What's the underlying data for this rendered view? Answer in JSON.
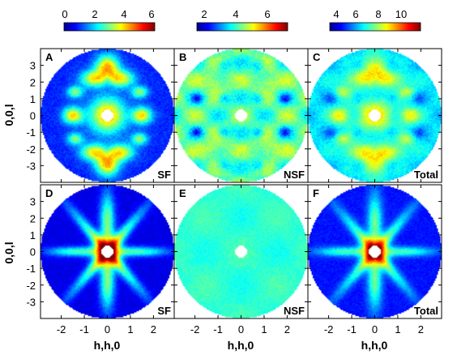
{
  "colorbars": [
    {
      "ticks": [
        "0",
        "2",
        "4",
        "6"
      ],
      "range": [
        0,
        6
      ]
    },
    {
      "ticks": [
        "2",
        "4",
        "6"
      ],
      "range": [
        1.5,
        7.5
      ]
    },
    {
      "ticks": [
        "4",
        "6",
        "8",
        "10"
      ],
      "range": [
        3,
        11
      ]
    }
  ],
  "chart_data": {
    "type": "heatmap",
    "xlabel": "h,h,0",
    "ylabel": "0,0,l",
    "x_ticks": [
      "-2",
      "-1",
      "0",
      "1",
      "2"
    ],
    "y_ticks": [
      "3",
      "2",
      "1",
      "0",
      "-1",
      "-2",
      "-3"
    ],
    "xlim": [
      -2.9,
      2.9
    ],
    "ylim": [
      -4,
      4
    ],
    "colormap": "jet",
    "panels": [
      {
        "letter": "A",
        "tag": "SF",
        "row": 0,
        "col": 0
      },
      {
        "letter": "B",
        "tag": "NSF",
        "row": 0,
        "col": 1
      },
      {
        "letter": "C",
        "tag": "Total",
        "row": 0,
        "col": 2
      },
      {
        "letter": "D",
        "tag": "SF",
        "row": 1,
        "col": 0
      },
      {
        "letter": "E",
        "tag": "NSF",
        "row": 1,
        "col": 1
      },
      {
        "letter": "F",
        "tag": "Total",
        "row": 1,
        "col": 2
      }
    ]
  }
}
